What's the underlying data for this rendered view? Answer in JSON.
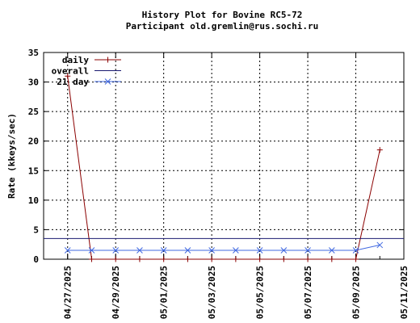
{
  "chart_data": {
    "type": "line",
    "title": "History Plot for Bovine RC5-72",
    "subtitle": "Participant old.gremlin@rus.sochi.ru",
    "xlabel": "",
    "ylabel": "Rate (kkeys/sec)",
    "ylim": [
      0,
      35
    ],
    "yticks": [
      0,
      5,
      10,
      15,
      20,
      25,
      30,
      35
    ],
    "xlim": [
      "2025-04-26",
      "2025-05-11"
    ],
    "xticks": [
      "04/27/2025",
      "04/29/2025",
      "05/01/2025",
      "05/03/2025",
      "05/05/2025",
      "05/07/2025",
      "05/09/2025",
      "05/11/2025"
    ],
    "grid": true,
    "legend_position": "top-left",
    "series": [
      {
        "name": "daily",
        "color": "#8b0000",
        "marker": "plus",
        "x": [
          "2025-04-27",
          "2025-04-28",
          "2025-04-29",
          "2025-04-30",
          "2025-05-01",
          "2025-05-02",
          "2025-05-03",
          "2025-05-04",
          "2025-05-05",
          "2025-05-06",
          "2025-05-07",
          "2025-05-08",
          "2025-05-09",
          "2025-05-10"
        ],
        "y": [
          31,
          0,
          0,
          0,
          0,
          0,
          0,
          0,
          0,
          0,
          0,
          0,
          0,
          18.5
        ]
      },
      {
        "name": "overall",
        "color": "#191970",
        "marker": "none",
        "x": [
          "2025-04-26",
          "2025-05-11"
        ],
        "y": [
          3.5,
          3.5
        ]
      },
      {
        "name": "21 day",
        "color": "#4169e1",
        "marker": "x",
        "x": [
          "2025-04-27",
          "2025-04-28",
          "2025-04-29",
          "2025-04-30",
          "2025-05-01",
          "2025-05-02",
          "2025-05-03",
          "2025-05-04",
          "2025-05-05",
          "2025-05-06",
          "2025-05-07",
          "2025-05-08",
          "2025-05-09",
          "2025-05-10"
        ],
        "y": [
          1.5,
          1.5,
          1.5,
          1.5,
          1.5,
          1.5,
          1.5,
          1.5,
          1.5,
          1.5,
          1.5,
          1.5,
          1.5,
          2.4
        ]
      }
    ]
  }
}
